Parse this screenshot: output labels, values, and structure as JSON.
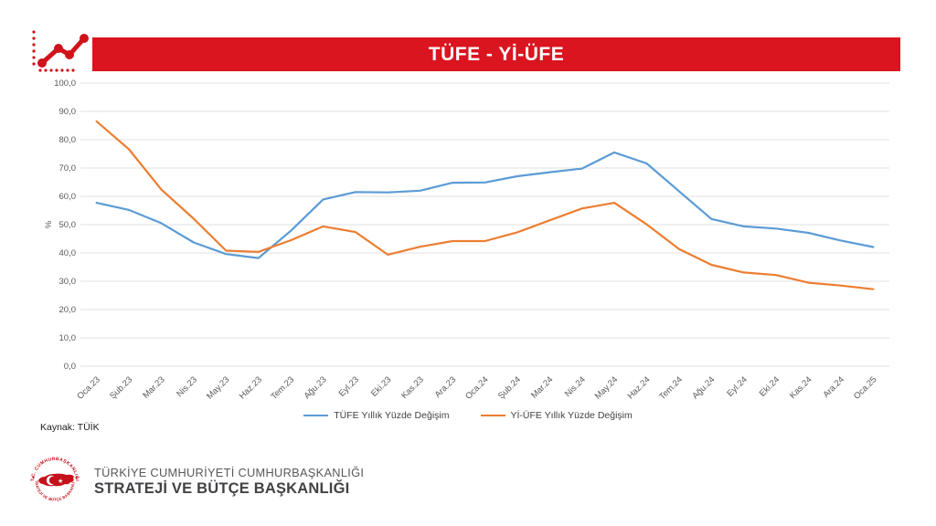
{
  "header": {
    "title": "TÜFE - Yİ-ÜFE"
  },
  "chart_data": {
    "type": "line",
    "title": "TÜFE - Yİ-ÜFE",
    "xlabel": "",
    "ylabel": "%",
    "ylim": [
      0,
      100
    ],
    "ytick_step": 10,
    "grid": true,
    "legend_position": "bottom",
    "categories": [
      "Oca.23",
      "Şub.23",
      "Mar.23",
      "Nis.23",
      "May.23",
      "Haz.23",
      "Tem.23",
      "Ağu.23",
      "Eyl.23",
      "Eki.23",
      "Kas.23",
      "Ara.23",
      "Oca.24",
      "Şub.24",
      "Mar.24",
      "Nis.24",
      "May.24",
      "Haz.24",
      "Tem.24",
      "Ağu.24",
      "Eyl.24",
      "Eki.24",
      "Kas.24",
      "Ara.24",
      "Oca.25"
    ],
    "series": [
      {
        "name": "TÜFE Yıllık Yüzde Değişim",
        "color": "#5B9BD5",
        "values": [
          57.7,
          55.2,
          50.5,
          43.7,
          39.6,
          38.2,
          47.8,
          58.9,
          61.5,
          61.4,
          62.0,
          64.8,
          64.9,
          67.1,
          68.5,
          69.8,
          75.5,
          71.6,
          61.8,
          52.0,
          49.4,
          48.6,
          47.1,
          44.4,
          42.1
        ]
      },
      {
        "name": "Yİ-ÜFE Yıllık Yüzde Değişim",
        "color": "#ED7D31",
        "values": [
          86.5,
          76.6,
          62.4,
          52.1,
          40.8,
          40.4,
          44.5,
          49.4,
          47.4,
          39.4,
          42.2,
          44.2,
          44.2,
          47.3,
          51.5,
          55.7,
          57.7,
          50.1,
          41.4,
          35.8,
          33.1,
          32.2,
          29.5,
          28.5,
          27.2
        ]
      }
    ]
  },
  "source": {
    "label": "Kaynak: TÜİK"
  },
  "footer": {
    "line1": "TÜRKİYE CUMHURİYETİ CUMHURBAŞKANLIĞI",
    "line2": "STRATEJİ VE BÜTÇE BAŞKANLIĞI",
    "seal_top_text": "T.C. CUMHURBAŞKANLIĞI",
    "seal_bottom_text": "STRATEJİ VE BÜTÇE BAŞKANLIĞI"
  },
  "colors": {
    "header_red": "#DA151F",
    "seal_red": "#C5111B",
    "gridline": "#E2E2E2",
    "axis_text": "#595959"
  }
}
